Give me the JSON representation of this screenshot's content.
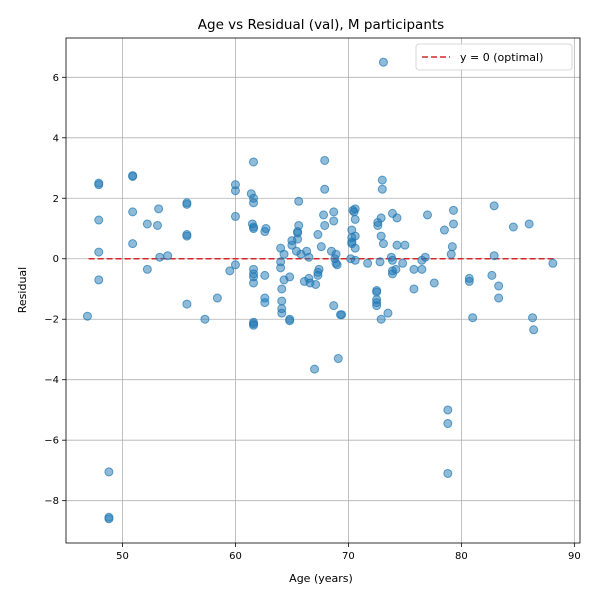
{
  "chart_data": {
    "type": "scatter",
    "title": "Age vs Residual (val), M participants",
    "xlabel": "Age (years)",
    "ylabel": "Residual",
    "xlim": [
      45,
      90.5
    ],
    "ylim": [
      -9.4,
      7.3
    ],
    "xticks": [
      50,
      60,
      70,
      80,
      90
    ],
    "yticks": [
      -8,
      -6,
      -4,
      -2,
      0,
      2,
      4,
      6
    ],
    "xtick_labels": [
      "50",
      "60",
      "70",
      "80",
      "90"
    ],
    "ytick_labels": [
      "−8",
      "−6",
      "−4",
      "−2",
      "0",
      "2",
      "4",
      "6"
    ],
    "grid": true,
    "legend_position": "upper right",
    "reference_line": {
      "y": 0,
      "label": "y = 0 (optimal)",
      "color": "#d62728",
      "style": "dashed"
    },
    "point_color": "#1f77b4",
    "points": [
      [
        46.9,
        -1.9
      ],
      [
        47.9,
        2.45
      ],
      [
        47.9,
        2.5
      ],
      [
        47.9,
        1.28
      ],
      [
        47.9,
        0.22
      ],
      [
        47.9,
        -0.7
      ],
      [
        48.8,
        -7.05
      ],
      [
        48.8,
        -8.55
      ],
      [
        48.8,
        -8.6
      ],
      [
        50.9,
        2.75
      ],
      [
        50.9,
        2.72
      ],
      [
        50.9,
        1.55
      ],
      [
        50.9,
        0.5
      ],
      [
        52.2,
        1.15
      ],
      [
        52.2,
        -0.35
      ],
      [
        53.1,
        1.1
      ],
      [
        53.2,
        1.65
      ],
      [
        53.3,
        0.05
      ],
      [
        54.0,
        0.1
      ],
      [
        55.7,
        1.85
      ],
      [
        55.7,
        1.8
      ],
      [
        55.7,
        0.8
      ],
      [
        55.7,
        0.75
      ],
      [
        55.7,
        -1.5
      ],
      [
        57.3,
        -2.0
      ],
      [
        58.4,
        -1.3
      ],
      [
        59.5,
        -0.4
      ],
      [
        60.0,
        2.45
      ],
      [
        60.0,
        2.25
      ],
      [
        60.0,
        1.4
      ],
      [
        60.0,
        -0.2
      ],
      [
        61.4,
        2.15
      ],
      [
        61.5,
        1.15
      ],
      [
        61.6,
        3.2
      ],
      [
        61.6,
        2.0
      ],
      [
        61.6,
        1.85
      ],
      [
        61.6,
        1.05
      ],
      [
        61.6,
        1.0
      ],
      [
        61.6,
        -0.35
      ],
      [
        61.6,
        -0.5
      ],
      [
        61.6,
        -0.6
      ],
      [
        61.6,
        -0.8
      ],
      [
        61.6,
        -2.1
      ],
      [
        61.6,
        -2.15
      ],
      [
        61.6,
        -2.2
      ],
      [
        62.6,
        -1.3
      ],
      [
        62.6,
        -1.45
      ],
      [
        62.6,
        -0.55
      ],
      [
        62.6,
        0.9
      ],
      [
        62.7,
        1.0
      ],
      [
        64.0,
        0.35
      ],
      [
        64.0,
        -0.1
      ],
      [
        64.0,
        -0.3
      ],
      [
        64.1,
        -1.0
      ],
      [
        64.1,
        -1.4
      ],
      [
        64.1,
        -1.65
      ],
      [
        64.1,
        -1.8
      ],
      [
        64.3,
        0.15
      ],
      [
        64.3,
        -0.7
      ],
      [
        64.8,
        -0.6
      ],
      [
        64.8,
        -2.0
      ],
      [
        64.8,
        -2.05
      ],
      [
        65.0,
        0.45
      ],
      [
        65.0,
        0.6
      ],
      [
        65.4,
        0.25
      ],
      [
        65.5,
        0.85
      ],
      [
        65.5,
        0.9
      ],
      [
        65.5,
        0.65
      ],
      [
        65.6,
        1.1
      ],
      [
        65.6,
        1.9
      ],
      [
        65.8,
        0.15
      ],
      [
        66.1,
        -0.75
      ],
      [
        66.3,
        0.25
      ],
      [
        66.5,
        0.05
      ],
      [
        66.5,
        -0.65
      ],
      [
        66.6,
        -0.8
      ],
      [
        67.0,
        -3.65
      ],
      [
        67.1,
        -0.85
      ],
      [
        67.3,
        0.8
      ],
      [
        67.3,
        -0.55
      ],
      [
        67.3,
        -0.45
      ],
      [
        67.4,
        -0.35
      ],
      [
        67.6,
        0.4
      ],
      [
        67.8,
        1.45
      ],
      [
        67.9,
        3.25
      ],
      [
        67.9,
        2.3
      ],
      [
        67.9,
        1.1
      ],
      [
        68.5,
        0.25
      ],
      [
        68.7,
        1.55
      ],
      [
        68.7,
        1.25
      ],
      [
        68.7,
        -1.55
      ],
      [
        68.8,
        0.0
      ],
      [
        68.9,
        -0.15
      ],
      [
        68.9,
        0.15
      ],
      [
        69.0,
        -0.2
      ],
      [
        69.1,
        -3.3
      ],
      [
        69.3,
        -1.85
      ],
      [
        69.4,
        -1.85
      ],
      [
        70.2,
        0.0
      ],
      [
        70.3,
        0.5
      ],
      [
        70.3,
        0.55
      ],
      [
        70.3,
        0.7
      ],
      [
        70.3,
        0.95
      ],
      [
        70.4,
        1.6
      ],
      [
        70.5,
        1.55
      ],
      [
        70.6,
        1.65
      ],
      [
        70.6,
        1.3
      ],
      [
        70.6,
        0.75
      ],
      [
        70.6,
        0.35
      ],
      [
        70.6,
        -0.05
      ],
      [
        71.7,
        -0.15
      ],
      [
        72.5,
        -1.05
      ],
      [
        72.5,
        -1.1
      ],
      [
        72.5,
        -1.35
      ],
      [
        72.5,
        -1.45
      ],
      [
        72.5,
        -1.55
      ],
      [
        72.6,
        1.2
      ],
      [
        72.6,
        1.1
      ],
      [
        72.8,
        -0.1
      ],
      [
        72.9,
        1.35
      ],
      [
        72.9,
        0.75
      ],
      [
        72.9,
        -2.0
      ],
      [
        73.0,
        2.6
      ],
      [
        73.0,
        2.3
      ],
      [
        73.1,
        0.5
      ],
      [
        73.1,
        6.5
      ],
      [
        73.5,
        -1.8
      ],
      [
        73.8,
        0.05
      ],
      [
        73.9,
        -0.05
      ],
      [
        73.9,
        -0.4
      ],
      [
        73.9,
        -0.5
      ],
      [
        73.9,
        1.5
      ],
      [
        74.2,
        -0.35
      ],
      [
        74.3,
        1.35
      ],
      [
        74.3,
        0.45
      ],
      [
        74.8,
        -0.15
      ],
      [
        75.0,
        0.45
      ],
      [
        75.8,
        -0.35
      ],
      [
        75.8,
        -1.0
      ],
      [
        76.5,
        -0.05
      ],
      [
        76.5,
        -0.35
      ],
      [
        76.8,
        0.05
      ],
      [
        77.0,
        1.45
      ],
      [
        77.6,
        -0.8
      ],
      [
        78.5,
        0.95
      ],
      [
        78.8,
        -5.0
      ],
      [
        78.8,
        -5.45
      ],
      [
        78.8,
        -7.1
      ],
      [
        79.1,
        0.15
      ],
      [
        79.2,
        0.4
      ],
      [
        79.3,
        1.6
      ],
      [
        79.3,
        1.15
      ],
      [
        80.7,
        -0.65
      ],
      [
        80.7,
        -0.75
      ],
      [
        81.0,
        -1.95
      ],
      [
        82.7,
        -0.55
      ],
      [
        82.9,
        1.75
      ],
      [
        82.9,
        0.1
      ],
      [
        83.3,
        -0.9
      ],
      [
        83.3,
        -1.3
      ],
      [
        84.6,
        1.05
      ],
      [
        86.0,
        1.15
      ],
      [
        86.3,
        -1.95
      ],
      [
        86.4,
        -2.35
      ],
      [
        88.1,
        -0.15
      ]
    ]
  }
}
